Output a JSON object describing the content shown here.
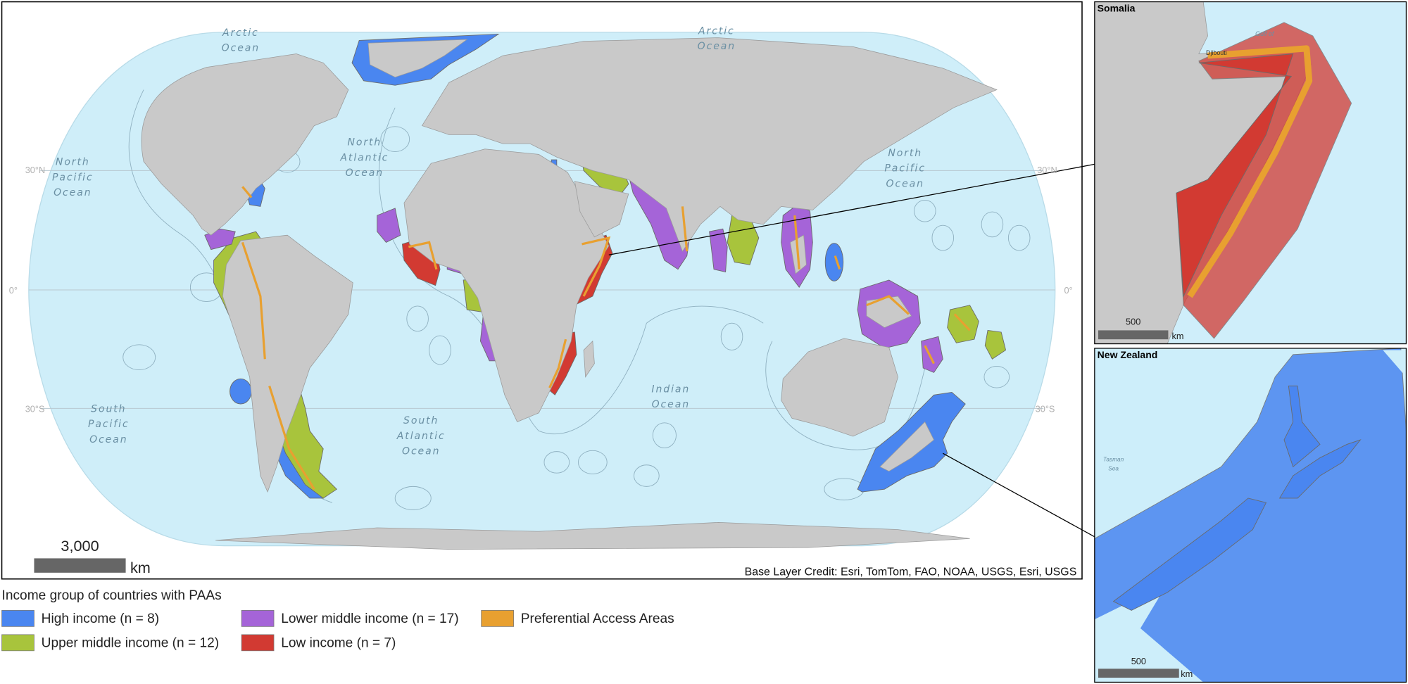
{
  "map": {
    "ocean_labels": [
      [
        "Arctic",
        "Ocean"
      ],
      [
        "Arctic",
        "Ocean"
      ],
      [
        "North",
        "Pacific",
        "Ocean"
      ],
      [
        "North",
        "Atlantic",
        "Ocean"
      ],
      [
        "North",
        "Pacific",
        "Ocean"
      ],
      [
        "South",
        "Pacific",
        "Ocean"
      ],
      [
        "South",
        "Atlantic",
        "Ocean"
      ],
      [
        "Indian",
        "Ocean"
      ]
    ],
    "graticule_labels": {
      "left": [
        "30°N",
        "0°",
        "30°S"
      ],
      "right": [
        "30°N",
        "0°",
        "30°S"
      ]
    },
    "scale_bar": {
      "distance": "3,000",
      "unit": "km"
    },
    "credit": "Base Layer Credit: Esri, TomTom, FAO, NOAA, USGS, Esri, USGS"
  },
  "insets": [
    {
      "title": "Somalia",
      "places": [
        "Gulf of",
        "Djibouti"
      ],
      "scale_distance": "500",
      "scale_unit": "km"
    },
    {
      "title": "New Zealand",
      "places": [
        "Tasman",
        "Sea"
      ],
      "scale_distance": "500",
      "scale_unit": "km"
    }
  ],
  "legend": {
    "title": "Income group of countries with PAAs",
    "items": [
      {
        "label": "High income (n = 8)",
        "color": "#4a86f0"
      },
      {
        "label": "Upper middle income (n = 12)",
        "color": "#a8c43c"
      },
      {
        "label": "Lower middle income (n = 17)",
        "color": "#a564d8"
      },
      {
        "label": "Low income (n = 7)",
        "color": "#d23a32"
      },
      {
        "label": "Preferential Access Areas",
        "color": "#e8a030"
      }
    ]
  }
}
